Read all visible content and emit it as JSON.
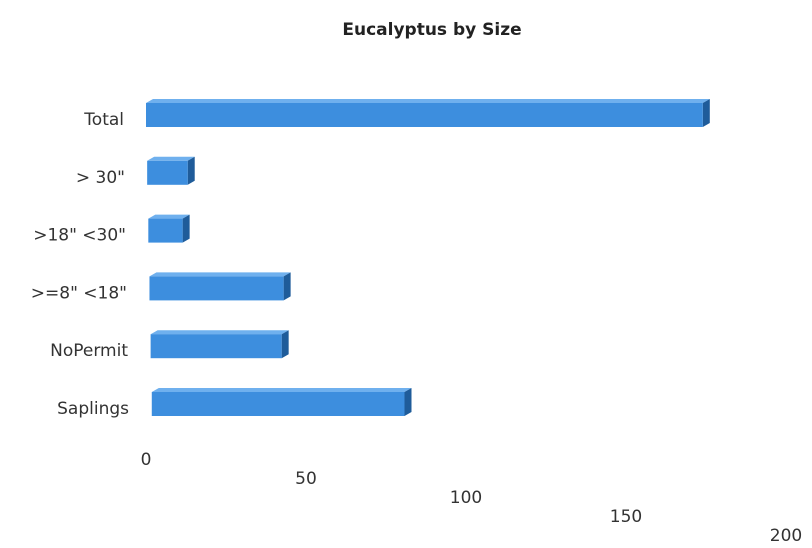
{
  "chart_data": {
    "type": "bar",
    "orientation": "horizontal",
    "title": "Eucalyptus by Size",
    "categories": [
      "Total",
      "> 30\"",
      ">18\" <30\"",
      ">=8\" <18\"",
      "NoPermit",
      "Saplings"
    ],
    "values": [
      190,
      13,
      11,
      43,
      42,
      81
    ],
    "color": "#3d8ede",
    "xlim": [
      0,
      200
    ],
    "xticks": [
      0,
      50,
      100,
      150,
      200
    ],
    "grid": false
  }
}
